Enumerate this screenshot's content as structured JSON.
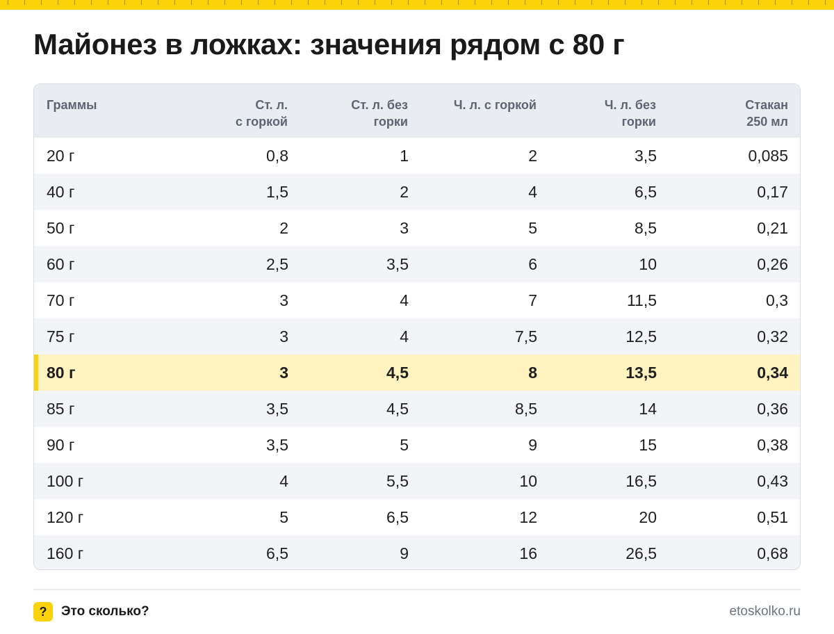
{
  "title": "Майонез в ложках: значения рядом с 80 г",
  "colors": {
    "accent": "#fcd20a",
    "highlight_row": "#fff3c0",
    "header_bg": "#e9ecf1",
    "stripe_bg": "#f2f4f7"
  },
  "table": {
    "headers": [
      [
        "Граммы"
      ],
      [
        "Ст. л.",
        "с горкой"
      ],
      [
        "Ст. л. без",
        "горки"
      ],
      [
        "Ч. л. с горкой"
      ],
      [
        "Ч. л. без",
        "горки"
      ],
      [
        "Стакан",
        "250 мл"
      ]
    ],
    "highlight_index": 6,
    "rows": [
      [
        "20 г",
        "0,8",
        "1",
        "2",
        "3,5",
        "0,085"
      ],
      [
        "40 г",
        "1,5",
        "2",
        "4",
        "6,5",
        "0,17"
      ],
      [
        "50 г",
        "2",
        "3",
        "5",
        "8,5",
        "0,21"
      ],
      [
        "60 г",
        "2,5",
        "3,5",
        "6",
        "10",
        "0,26"
      ],
      [
        "70 г",
        "3",
        "4",
        "7",
        "11,5",
        "0,3"
      ],
      [
        "75 г",
        "3",
        "4",
        "7,5",
        "12,5",
        "0,32"
      ],
      [
        "80 г",
        "3",
        "4,5",
        "8",
        "13,5",
        "0,34"
      ],
      [
        "85 г",
        "3,5",
        "4,5",
        "8,5",
        "14",
        "0,36"
      ],
      [
        "90 г",
        "3,5",
        "5",
        "9",
        "15",
        "0,38"
      ],
      [
        "100 г",
        "4",
        "5,5",
        "10",
        "16,5",
        "0,43"
      ],
      [
        "120 г",
        "5",
        "6,5",
        "12",
        "20",
        "0,51"
      ],
      [
        "160 г",
        "6,5",
        "9",
        "16",
        "26,5",
        "0,68"
      ]
    ]
  },
  "footer": {
    "icon": "question-icon",
    "icon_glyph": "?",
    "brand": "Это сколько?",
    "site": "etoskolko.ru"
  }
}
